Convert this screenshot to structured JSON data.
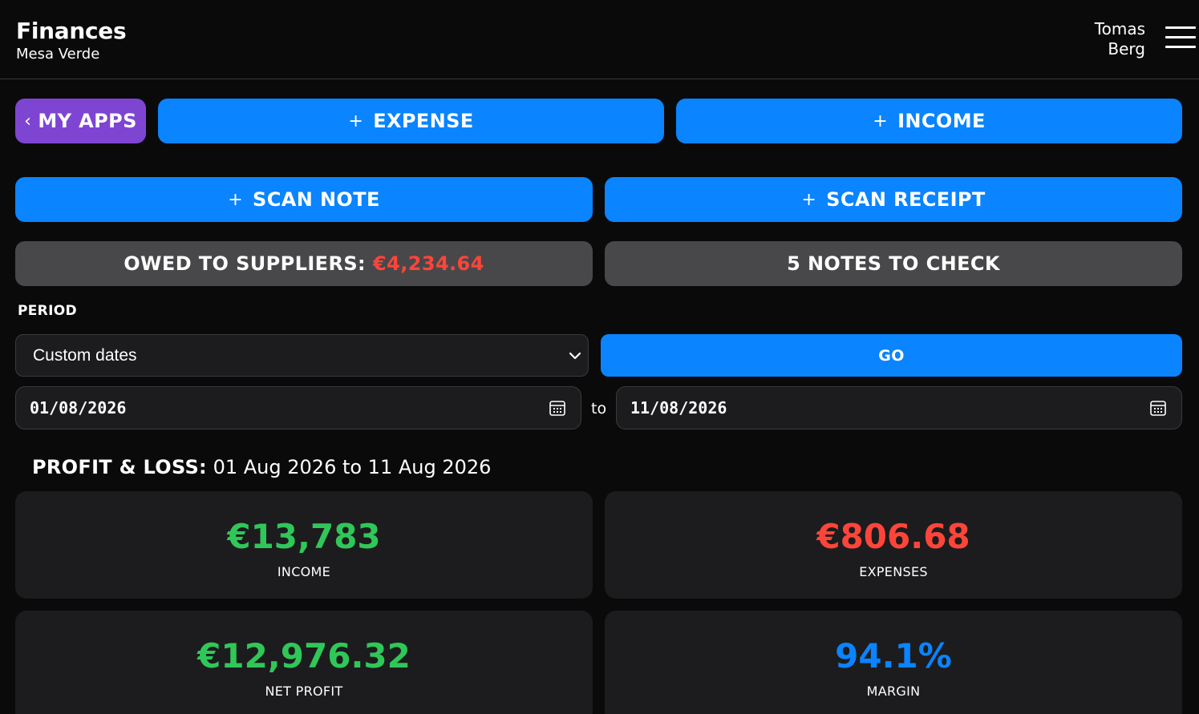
{
  "header": {
    "title": "Finances",
    "subtitle": "Mesa Verde",
    "user_first": "Tomas",
    "user_last": "Berg"
  },
  "actions": {
    "my_apps": "MY APPS",
    "expense": "EXPENSE",
    "income": "INCOME",
    "scan_note": "SCAN NOTE",
    "scan_receipt": "SCAN RECEIPT",
    "plus": "+",
    "back_chevron": "‹"
  },
  "status": {
    "owed_label": "OWED TO SUPPLIERS:",
    "owed_value": "€4,234.64",
    "notes_to_check": "5 NOTES TO CHECK"
  },
  "period": {
    "label": "PERIOD",
    "selected": "Custom dates",
    "go": "GO",
    "from_date": "01/08/2026",
    "to_label": "to",
    "to_date": "11/08/2026"
  },
  "pl": {
    "heading_strong": "PROFIT & LOSS:",
    "heading_range": "01 Aug 2026 to 11 Aug 2026",
    "cards": {
      "income_value": "€13,783",
      "income_label": "INCOME",
      "expenses_value": "€806.68",
      "expenses_label": "EXPENSES",
      "net_value": "€12,976.32",
      "net_label": "NET PROFIT",
      "margin_value": "94.1%",
      "margin_label": "MARGIN"
    }
  },
  "colors": {
    "accent_blue": "#0a84ff",
    "purple": "#7e45d3",
    "positive": "#30c759",
    "negative": "#ff453a"
  },
  "icons": {
    "menu": "hamburger-menu-icon",
    "select": "chevron-down-icon",
    "date": "calendar-icon"
  }
}
